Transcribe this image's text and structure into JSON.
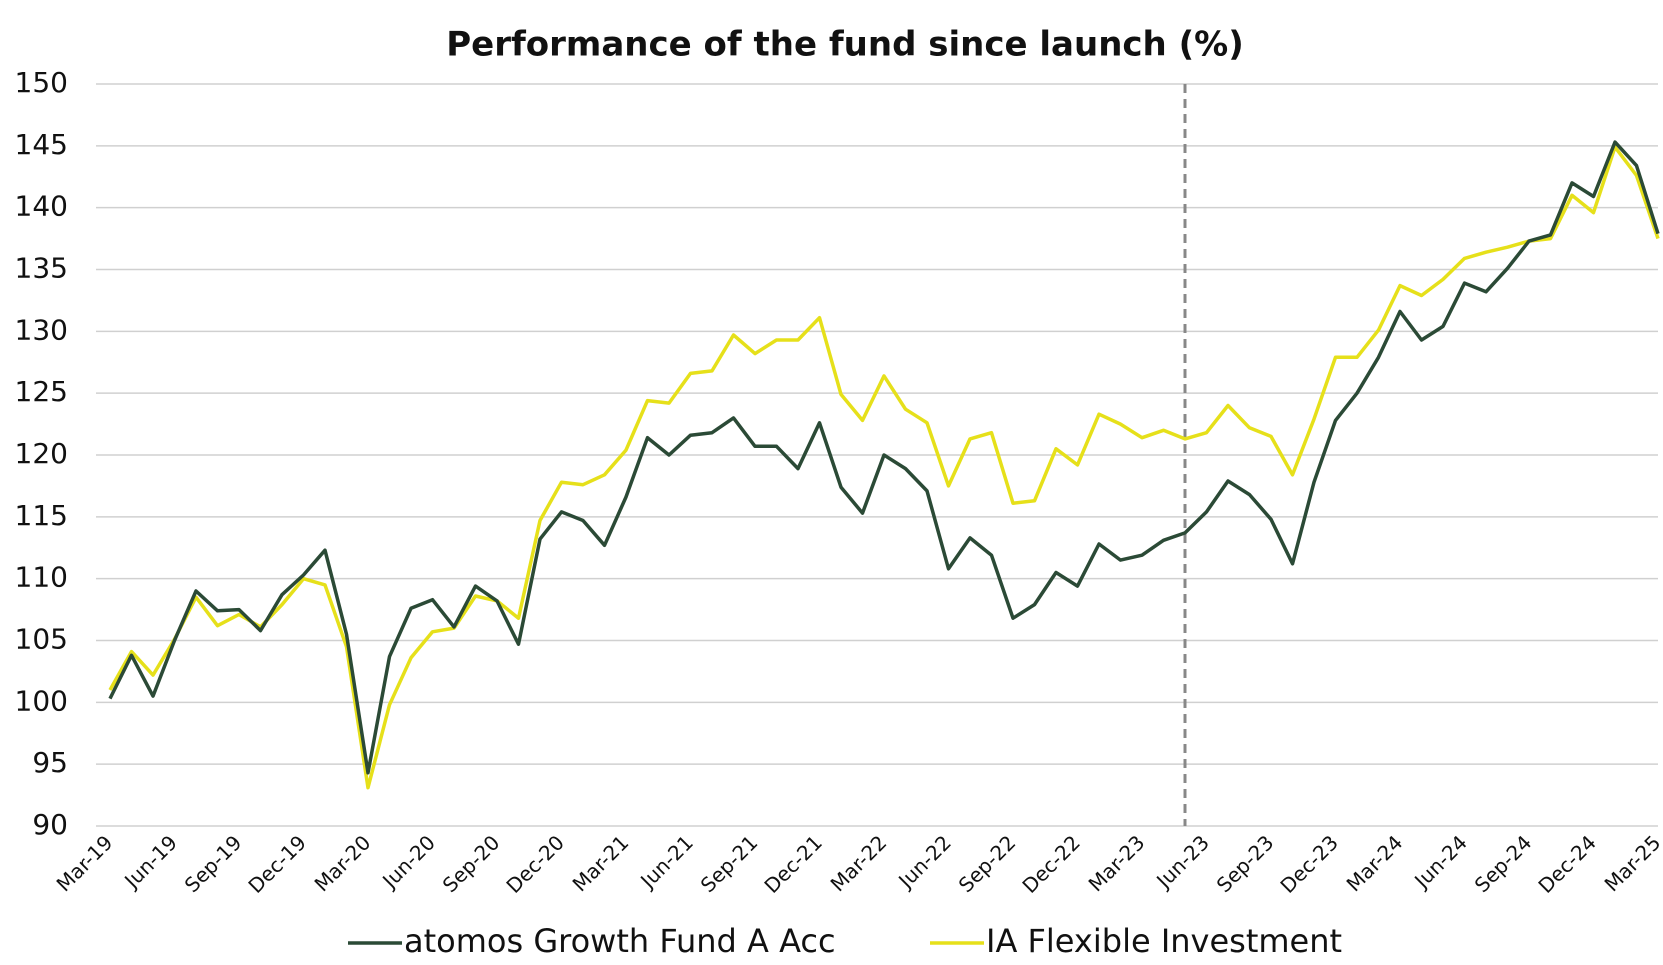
{
  "chart_data": {
    "type": "line",
    "title": "Performance of the fund since launch (%)",
    "categories": [
      "Mar-19",
      null,
      null,
      "Jun-19",
      null,
      null,
      "Sep-19",
      null,
      null,
      "Dec-19",
      null,
      null,
      "Mar-20",
      null,
      null,
      "Jun-20",
      null,
      null,
      "Sep-20",
      null,
      null,
      "Dec-20",
      null,
      null,
      "Mar-21",
      null,
      null,
      "Jun-21",
      null,
      null,
      "Sep-21",
      null,
      null,
      "Dec-21",
      null,
      null,
      "Mar-22",
      null,
      null,
      "Jun-22",
      null,
      null,
      "Sep-22",
      null,
      null,
      "Dec-22",
      null,
      null,
      "Mar-23",
      null,
      null,
      "Jun-23",
      null,
      null,
      "Sep-23",
      null,
      null,
      "Dec-23",
      null,
      null,
      "Mar-24",
      null,
      null,
      "Jun-24",
      null,
      null,
      "Sep-24",
      null,
      null,
      "Dec-24",
      null,
      null,
      "Mar-25"
    ],
    "series": [
      {
        "name": "atomos Growth Fund A Acc",
        "color": "#2b4a36",
        "values": [
          100.3,
          103.8,
          100.5,
          105,
          109,
          107.4,
          107.5,
          105.8,
          108.7,
          110.3,
          112.3,
          105.5,
          94.3,
          103.7,
          107.6,
          108.3,
          106.1,
          109.4,
          108.2,
          104.7,
          113.2,
          115.4,
          114.7,
          112.7,
          116.6,
          121.4,
          120,
          121.6,
          121.8,
          123,
          120.7,
          120.7,
          118.9,
          122.6,
          117.4,
          115.3,
          120,
          118.9,
          117.1,
          110.8,
          113.3,
          111.9,
          106.8,
          107.9,
          110.5,
          109.4,
          112.8,
          111.5,
          111.9,
          113.1,
          113.7,
          115.4,
          117.9,
          116.8,
          114.8,
          111.2,
          117.8,
          122.8,
          125,
          127.9,
          131.6,
          129.3,
          130.4,
          133.9,
          133.2,
          135.1,
          137.3,
          137.8,
          142,
          140.9,
          145.3,
          143.4,
          137.9
        ]
      },
      {
        "name": "IA Flexible Investment",
        "color": "#e6e01a",
        "values": [
          101,
          104.1,
          102.2,
          105.1,
          108.5,
          106.2,
          107.1,
          106.1,
          107.9,
          110,
          109.5,
          104.5,
          93.1,
          99.8,
          103.6,
          105.7,
          106,
          108.6,
          108.2,
          106.8,
          114.7,
          117.8,
          117.6,
          118.4,
          120.4,
          124.4,
          124.2,
          126.6,
          126.8,
          129.7,
          128.2,
          129.3,
          129.3,
          131.1,
          124.9,
          122.8,
          126.4,
          123.7,
          122.6,
          117.5,
          121.3,
          121.8,
          116.1,
          116.3,
          120.5,
          119.2,
          123.3,
          122.5,
          121.4,
          122,
          121.3,
          121.8,
          124,
          122.2,
          121.5,
          118.4,
          122.9,
          127.9,
          127.9,
          130.1,
          133.7,
          132.9,
          134.2,
          135.9,
          136.4,
          136.8,
          137.3,
          137.5,
          141,
          139.6,
          144.9,
          142.6,
          137.5
        ]
      }
    ],
    "ylim": [
      90,
      150
    ],
    "yticks": [
      90,
      95,
      100,
      105,
      110,
      115,
      120,
      125,
      130,
      135,
      140,
      145,
      150
    ],
    "grid": true,
    "marker_index": 50,
    "legend": "bottom"
  }
}
